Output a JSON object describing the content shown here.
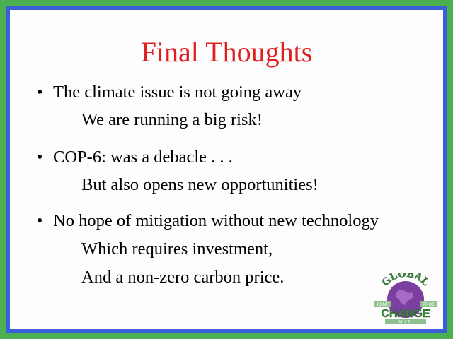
{
  "slide": {
    "title": "Final Thoughts",
    "bullets": [
      {
        "marker": "•",
        "text": "The climate issue is not going away",
        "sub": [
          "We are running a big risk!"
        ]
      },
      {
        "marker": "•",
        "text": "COP-6: was a debacle . . .",
        "sub": [
          "But also opens new opportunities!"
        ]
      },
      {
        "marker": "•",
        "text": "No hope of mitigation without new technology",
        "sub": [
          "Which requires investment,",
          "And a non-zero carbon price."
        ]
      }
    ]
  },
  "logo": {
    "top_text": "GLOBAL",
    "middle_text": "CHANGE",
    "bottom_text": "MIT",
    "left_tag": "JOINT",
    "right_tag": "PROG",
    "colors": {
      "globe": "#7b3fa0",
      "text": "#3d8a3d",
      "band": "#8fc18f"
    }
  },
  "colors": {
    "background": "#4caf50",
    "border": "#3a5fd9",
    "slide": "#fdfdfd",
    "title": "#e02020"
  }
}
